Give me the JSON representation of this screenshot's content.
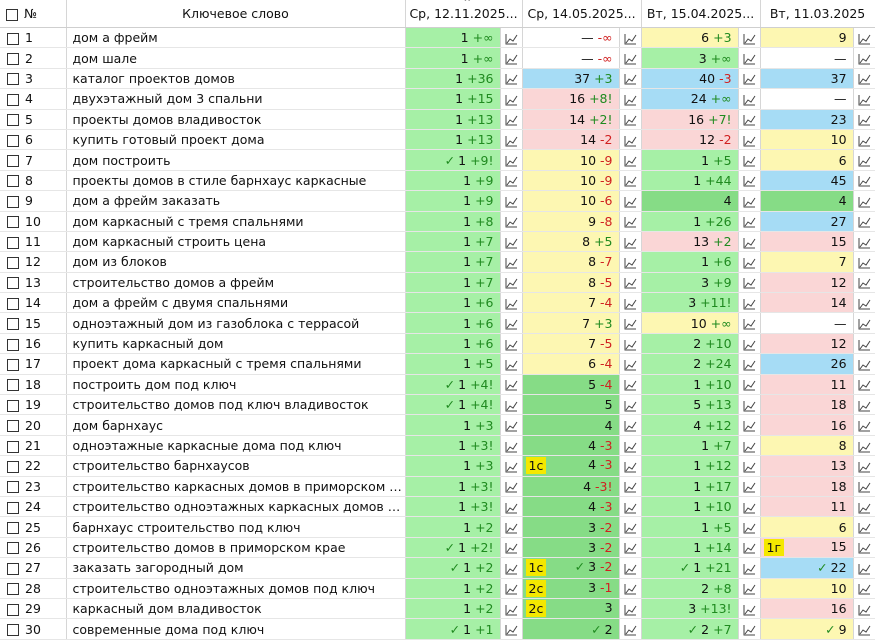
{
  "header": {
    "num": "№",
    "keyword": "Ключевое слово",
    "dates": [
      "Ср, 12.11.2025",
      "Ср, 14.05.2025",
      "Вт, 15.04.2025",
      "Вт, 11.03.2025"
    ]
  },
  "colors": {
    "green": "#a6f0a6",
    "dark_green": "#86dc86",
    "yellow": "#fdf7b2",
    "pink": "#fad6d6",
    "blue": "#a6dcf5",
    "tag": "#f4e800"
  },
  "rows": [
    {
      "n": "1",
      "kw": "дом а фрейм",
      "c": [
        {
          "v": "1",
          "d": "+∞",
          "bg": "green"
        },
        {
          "v": "—",
          "d": "-∞",
          "bg": "white"
        },
        {
          "v": "6",
          "d": "+3",
          "bg": "yellow"
        },
        {
          "v": "9",
          "bg": "yellow"
        }
      ]
    },
    {
      "n": "2",
      "kw": "дом шале",
      "c": [
        {
          "v": "1",
          "d": "+∞",
          "bg": "green"
        },
        {
          "v": "—",
          "d": "-∞",
          "bg": "white"
        },
        {
          "v": "3",
          "d": "+∞",
          "bg": "green"
        },
        {
          "v": "—",
          "bg": "white"
        }
      ]
    },
    {
      "n": "3",
      "kw": "каталог проектов домов",
      "c": [
        {
          "v": "1",
          "d": "+36",
          "bg": "green"
        },
        {
          "v": "37",
          "d": "+3",
          "bg": "blue"
        },
        {
          "v": "40",
          "d": "-3",
          "bg": "blue"
        },
        {
          "v": "37",
          "bg": "blue"
        }
      ]
    },
    {
      "n": "4",
      "kw": "двухэтажный дом 3 спальни",
      "c": [
        {
          "v": "1",
          "d": "+15",
          "bg": "green"
        },
        {
          "v": "16",
          "d": "+8!",
          "bg": "pink"
        },
        {
          "v": "24",
          "d": "+∞",
          "bg": "blue"
        },
        {
          "v": "—",
          "bg": "white"
        }
      ]
    },
    {
      "n": "5",
      "kw": "проекты домов владивосток",
      "c": [
        {
          "v": "1",
          "d": "+13",
          "bg": "green"
        },
        {
          "v": "14",
          "d": "+2!",
          "bg": "pink"
        },
        {
          "v": "16",
          "d": "+7!",
          "bg": "pink"
        },
        {
          "v": "23",
          "bg": "blue"
        }
      ]
    },
    {
      "n": "6",
      "kw": "купить готовый проект дома",
      "c": [
        {
          "v": "1",
          "d": "+13",
          "bg": "green"
        },
        {
          "v": "14",
          "d": "-2",
          "bg": "pink"
        },
        {
          "v": "12",
          "d": "-2",
          "bg": "pink"
        },
        {
          "v": "10",
          "bg": "yellow"
        }
      ]
    },
    {
      "n": "7",
      "kw": "дом построить",
      "c": [
        {
          "v": "1",
          "d": "+9!",
          "bg": "green",
          "chk": true
        },
        {
          "v": "10",
          "d": "-9",
          "bg": "yellow"
        },
        {
          "v": "1",
          "d": "+5",
          "bg": "green"
        },
        {
          "v": "6",
          "bg": "yellow"
        }
      ]
    },
    {
      "n": "8",
      "kw": "проекты домов в стиле барнхаус каркасные",
      "c": [
        {
          "v": "1",
          "d": "+9",
          "bg": "green"
        },
        {
          "v": "10",
          "d": "-9",
          "bg": "yellow"
        },
        {
          "v": "1",
          "d": "+44",
          "bg": "green"
        },
        {
          "v": "45",
          "bg": "blue"
        }
      ]
    },
    {
      "n": "9",
      "kw": "дом а фрейм заказать",
      "c": [
        {
          "v": "1",
          "d": "+9",
          "bg": "green"
        },
        {
          "v": "10",
          "d": "-6",
          "bg": "yellow"
        },
        {
          "v": "4",
          "bg": "dgreen"
        },
        {
          "v": "4",
          "bg": "dgreen"
        }
      ]
    },
    {
      "n": "10",
      "kw": "дом каркасный с тремя спальнями",
      "c": [
        {
          "v": "1",
          "d": "+8",
          "bg": "green"
        },
        {
          "v": "9",
          "d": "-8",
          "bg": "yellow"
        },
        {
          "v": "1",
          "d": "+26",
          "bg": "green"
        },
        {
          "v": "27",
          "bg": "blue"
        }
      ]
    },
    {
      "n": "11",
      "kw": "дом каркасный строить цена",
      "c": [
        {
          "v": "1",
          "d": "+7",
          "bg": "green"
        },
        {
          "v": "8",
          "d": "+5",
          "bg": "yellow"
        },
        {
          "v": "13",
          "d": "+2",
          "bg": "pink"
        },
        {
          "v": "15",
          "bg": "pink"
        }
      ]
    },
    {
      "n": "12",
      "kw": "дом из блоков",
      "c": [
        {
          "v": "1",
          "d": "+7",
          "bg": "green"
        },
        {
          "v": "8",
          "d": "-7",
          "bg": "yellow"
        },
        {
          "v": "1",
          "d": "+6",
          "bg": "green"
        },
        {
          "v": "7",
          "bg": "yellow"
        }
      ]
    },
    {
      "n": "13",
      "kw": "строительство домов а фрейм",
      "c": [
        {
          "v": "1",
          "d": "+7",
          "bg": "green"
        },
        {
          "v": "8",
          "d": "-5",
          "bg": "yellow"
        },
        {
          "v": "3",
          "d": "+9",
          "bg": "green"
        },
        {
          "v": "12",
          "bg": "pink"
        }
      ]
    },
    {
      "n": "14",
      "kw": "дом а фрейм с двумя спальнями",
      "c": [
        {
          "v": "1",
          "d": "+6",
          "bg": "green"
        },
        {
          "v": "7",
          "d": "-4",
          "bg": "yellow"
        },
        {
          "v": "3",
          "d": "+11!",
          "bg": "green"
        },
        {
          "v": "14",
          "bg": "pink"
        }
      ]
    },
    {
      "n": "15",
      "kw": "одноэтажный дом из газоблока с террасой",
      "c": [
        {
          "v": "1",
          "d": "+6",
          "bg": "green"
        },
        {
          "v": "7",
          "d": "+3",
          "bg": "yellow"
        },
        {
          "v": "10",
          "d": "+∞",
          "bg": "yellow"
        },
        {
          "v": "—",
          "bg": "white"
        }
      ]
    },
    {
      "n": "16",
      "kw": "купить каркасный дом",
      "c": [
        {
          "v": "1",
          "d": "+6",
          "bg": "green"
        },
        {
          "v": "7",
          "d": "-5",
          "bg": "yellow"
        },
        {
          "v": "2",
          "d": "+10",
          "bg": "green"
        },
        {
          "v": "12",
          "bg": "pink"
        }
      ]
    },
    {
      "n": "17",
      "kw": "проект дома каркасный с тремя спальнями",
      "c": [
        {
          "v": "1",
          "d": "+5",
          "bg": "green"
        },
        {
          "v": "6",
          "d": "-4",
          "bg": "yellow"
        },
        {
          "v": "2",
          "d": "+24",
          "bg": "green"
        },
        {
          "v": "26",
          "bg": "blue"
        }
      ]
    },
    {
      "n": "18",
      "kw": "построить дом под ключ",
      "c": [
        {
          "v": "1",
          "d": "+4!",
          "bg": "green",
          "chk": true
        },
        {
          "v": "5",
          "d": "-4",
          "bg": "dgreen"
        },
        {
          "v": "1",
          "d": "+10",
          "bg": "green"
        },
        {
          "v": "11",
          "bg": "pink"
        }
      ]
    },
    {
      "n": "19",
      "kw": "строительство домов под ключ владивосток",
      "c": [
        {
          "v": "1",
          "d": "+4!",
          "bg": "green",
          "chk": true
        },
        {
          "v": "5",
          "bg": "dgreen"
        },
        {
          "v": "5",
          "d": "+13",
          "bg": "green"
        },
        {
          "v": "18",
          "bg": "pink"
        }
      ]
    },
    {
      "n": "20",
      "kw": "дом барнхаус",
      "c": [
        {
          "v": "1",
          "d": "+3",
          "bg": "green"
        },
        {
          "v": "4",
          "bg": "dgreen"
        },
        {
          "v": "4",
          "d": "+12",
          "bg": "green"
        },
        {
          "v": "16",
          "bg": "pink"
        }
      ]
    },
    {
      "n": "21",
      "kw": "одноэтажные каркасные дома под ключ",
      "c": [
        {
          "v": "1",
          "d": "+3!",
          "bg": "green"
        },
        {
          "v": "4",
          "d": "-3",
          "bg": "dgreen"
        },
        {
          "v": "1",
          "d": "+7",
          "bg": "green"
        },
        {
          "v": "8",
          "bg": "yellow"
        }
      ]
    },
    {
      "n": "22",
      "kw": "строительство барнхаусов",
      "c": [
        {
          "v": "1",
          "d": "+3",
          "bg": "green"
        },
        {
          "v": "4",
          "d": "-3",
          "bg": "dgreen",
          "tag": "1с"
        },
        {
          "v": "1",
          "d": "+12",
          "bg": "green"
        },
        {
          "v": "13",
          "bg": "pink"
        }
      ]
    },
    {
      "n": "23",
      "kw": "строительство каркасных домов в приморском кр...",
      "c": [
        {
          "v": "1",
          "d": "+3!",
          "bg": "green"
        },
        {
          "v": "4",
          "d": "-3!",
          "bg": "dgreen"
        },
        {
          "v": "1",
          "d": "+17",
          "bg": "green"
        },
        {
          "v": "18",
          "bg": "pink"
        }
      ]
    },
    {
      "n": "24",
      "kw": "строительство одноэтажных каркасных домов по...",
      "c": [
        {
          "v": "1",
          "d": "+3!",
          "bg": "green"
        },
        {
          "v": "4",
          "d": "-3",
          "bg": "dgreen"
        },
        {
          "v": "1",
          "d": "+10",
          "bg": "green"
        },
        {
          "v": "11",
          "bg": "pink"
        }
      ]
    },
    {
      "n": "25",
      "kw": "барнхаус строительство под ключ",
      "c": [
        {
          "v": "1",
          "d": "+2",
          "bg": "green"
        },
        {
          "v": "3",
          "d": "-2",
          "bg": "dgreen"
        },
        {
          "v": "1",
          "d": "+5",
          "bg": "green"
        },
        {
          "v": "6",
          "bg": "yellow"
        }
      ]
    },
    {
      "n": "26",
      "kw": "строительство домов в приморском крае",
      "c": [
        {
          "v": "1",
          "d": "+2!",
          "bg": "green",
          "chk": true
        },
        {
          "v": "3",
          "d": "-2",
          "bg": "dgreen"
        },
        {
          "v": "1",
          "d": "+14",
          "bg": "green"
        },
        {
          "v": "15",
          "bg": "pink",
          "tag": "1г"
        }
      ]
    },
    {
      "n": "27",
      "kw": "заказать загородный дом",
      "c": [
        {
          "v": "1",
          "d": "+2",
          "bg": "green",
          "chk": true
        },
        {
          "v": "3",
          "d": "-2",
          "bg": "dgreen",
          "tag": "1с",
          "chk": true
        },
        {
          "v": "1",
          "d": "+21",
          "bg": "green",
          "chk": true
        },
        {
          "v": "22",
          "bg": "blue",
          "chk": true
        }
      ]
    },
    {
      "n": "28",
      "kw": "строительство одноэтажных домов под ключ",
      "c": [
        {
          "v": "1",
          "d": "+2",
          "bg": "green"
        },
        {
          "v": "3",
          "d": "-1",
          "bg": "dgreen",
          "tag": "2с"
        },
        {
          "v": "2",
          "d": "+8",
          "bg": "green"
        },
        {
          "v": "10",
          "bg": "yellow"
        }
      ]
    },
    {
      "n": "29",
      "kw": "каркасный дом владивосток",
      "c": [
        {
          "v": "1",
          "d": "+2",
          "bg": "green"
        },
        {
          "v": "3",
          "bg": "dgreen",
          "tag": "2с"
        },
        {
          "v": "3",
          "d": "+13!",
          "bg": "green"
        },
        {
          "v": "16",
          "bg": "pink"
        }
      ]
    },
    {
      "n": "30",
      "kw": "современные дома под ключ",
      "c": [
        {
          "v": "1",
          "d": "+1",
          "bg": "green",
          "chk": true
        },
        {
          "v": "2",
          "bg": "dgreen",
          "chk": true
        },
        {
          "v": "2",
          "d": "+7",
          "bg": "green",
          "chk": true
        },
        {
          "v": "9",
          "bg": "yellow",
          "chk": true
        }
      ]
    }
  ]
}
